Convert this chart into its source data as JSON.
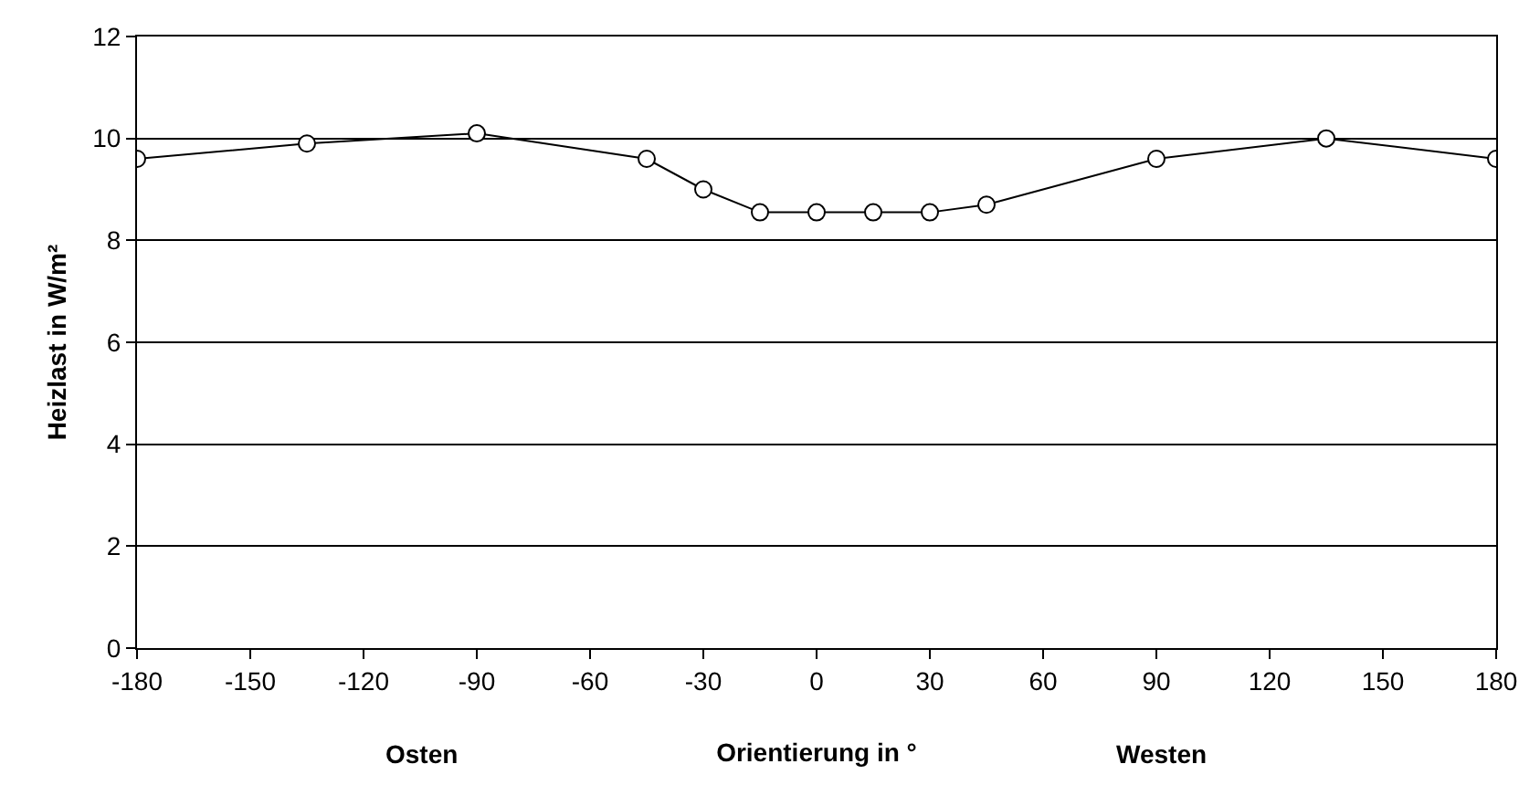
{
  "chart_data": {
    "type": "line",
    "xlabel": "Orientierung in °",
    "ylabel": "Heizlast in W/m²",
    "annotations": [
      "Osten",
      "Westen"
    ],
    "x": [
      -180,
      -135,
      -90,
      -45,
      -30,
      -15,
      0,
      15,
      30,
      45,
      90,
      135,
      180
    ],
    "series": [
      {
        "color": "#000000",
        "values": [
          9.6,
          9.9,
          10.1,
          9.6,
          9.0,
          8.55,
          8.55,
          8.55,
          8.55,
          8.7,
          9.6,
          10.0,
          9.6
        ]
      }
    ],
    "xlim": [
      -180,
      180
    ],
    "xticks": [
      -180,
      -150,
      -120,
      -90,
      -60,
      -30,
      0,
      30,
      60,
      90,
      120,
      150,
      180
    ],
    "ylim": [
      0,
      12
    ],
    "yticks": [
      0,
      2,
      4,
      6,
      8,
      10,
      12
    ],
    "grid": "y",
    "marker": "circle",
    "line_style": "solid"
  }
}
